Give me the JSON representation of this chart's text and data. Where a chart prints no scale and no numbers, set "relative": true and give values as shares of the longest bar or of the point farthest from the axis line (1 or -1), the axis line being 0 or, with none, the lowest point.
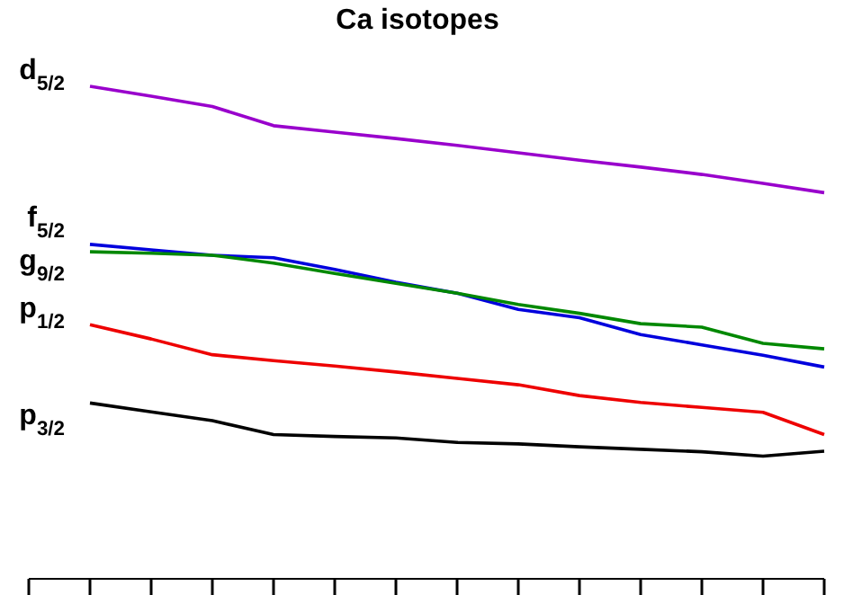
{
  "chart_data": {
    "type": "line",
    "title": "Ca isotopes",
    "relative": true,
    "marker": "none",
    "legend": false,
    "grid": false,
    "categories": [
      null,
      null,
      null,
      null,
      null,
      null,
      null,
      null,
      null,
      null,
      null,
      null,
      null,
      null
    ],
    "series": [
      {
        "name": "d$_{5/2}$",
        "color": "#9900cc",
        "values": [
          null,
          1,
          0.98,
          0.959,
          0.92,
          0.907,
          0.894,
          0.88,
          0.865,
          0.85,
          0.836,
          0.821,
          0.803,
          0.784
        ]
      },
      {
        "name": "f$_{5/2}$",
        "color": "#0000dd",
        "values": [
          null,
          0.679,
          0.668,
          0.657,
          0.652,
          0.628,
          0.602,
          0.58,
          0.547,
          0.53,
          0.496,
          0.475,
          0.454,
          0.43
        ]
      },
      {
        "name": "g$_{9/2}$",
        "color": "#008800",
        "values": [
          null,
          0.664,
          0.661,
          0.657,
          0.641,
          0.62,
          0.6,
          0.58,
          0.557,
          0.539,
          0.518,
          0.511,
          0.478,
          0.467
        ]
      },
      {
        "name": "p$_{1/2}$",
        "color": "#ee0000",
        "values": [
          null,
          0.516,
          0.487,
          0.455,
          0.443,
          0.432,
          0.42,
          0.407,
          0.394,
          0.372,
          0.358,
          0.348,
          0.338,
          0.293
        ]
      },
      {
        "name": "p$_{3/2}$",
        "color": "#000000",
        "values": [
          null,
          0.357,
          0.339,
          0.321,
          0.293,
          0.289,
          0.286,
          0.277,
          0.274,
          0.268,
          0.263,
          0.258,
          0.249,
          0.259
        ]
      }
    ]
  }
}
